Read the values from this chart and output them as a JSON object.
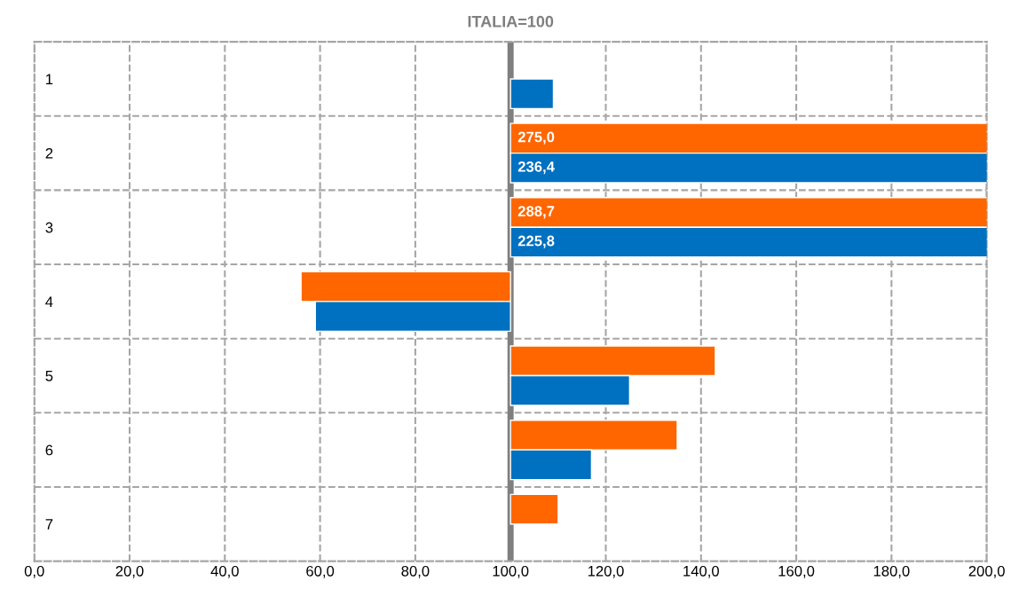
{
  "chart_data": {
    "type": "bar",
    "orientation": "horizontal",
    "title": "ITALIA=100",
    "categories": [
      "1",
      "2",
      "3",
      "4",
      "5",
      "6",
      "7"
    ],
    "series": [
      {
        "color": "#ff6600",
        "base": [
          null,
          100,
          100,
          100,
          100,
          100,
          100
        ],
        "values": [
          null,
          175.0,
          188.7,
          -44,
          43,
          35,
          10
        ],
        "value_labels": [
          null,
          "275,0",
          "288,7",
          null,
          null,
          null,
          null
        ]
      },
      {
        "color": "#0070c0",
        "base": [
          100,
          100,
          100,
          100,
          100,
          100,
          null
        ],
        "values": [
          9,
          136.4,
          125.8,
          -41,
          25,
          17,
          null
        ],
        "value_labels": [
          null,
          "236,4",
          "225,8",
          null,
          null,
          null,
          null
        ]
      }
    ],
    "xlim": [
      0,
      200
    ],
    "xticks": [
      {
        "value": 0,
        "label": "0,0"
      },
      {
        "value": 20,
        "label": "20,0"
      },
      {
        "value": 40,
        "label": "40,0"
      },
      {
        "value": 60,
        "label": "60,0"
      },
      {
        "value": 80,
        "label": "80,0"
      },
      {
        "value": 100,
        "label": "100,0"
      },
      {
        "value": 120,
        "label": "120,0"
      },
      {
        "value": 140,
        "label": "140,0"
      },
      {
        "value": 160,
        "label": "160,0"
      },
      {
        "value": 180,
        "label": "180,0"
      },
      {
        "value": 200,
        "label": "200,0"
      }
    ],
    "ref_lines": [
      {
        "axis": "x",
        "value": 100,
        "color": "#7f7f7f"
      }
    ],
    "grid": true,
    "line_style": "dashed"
  }
}
